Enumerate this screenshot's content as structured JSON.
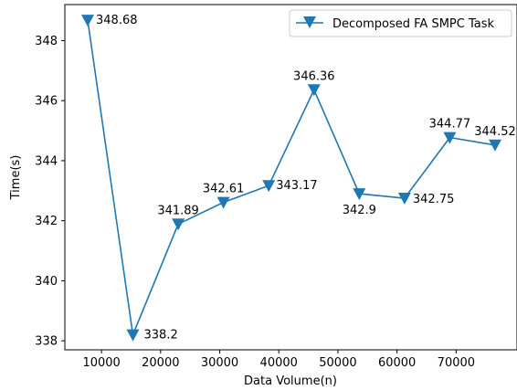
{
  "chart_data": {
    "type": "line",
    "title": "",
    "xlabel": "Data Volume(n)",
    "ylabel": "Time(s)",
    "xlim": [
      3800,
      80300
    ],
    "ylim": [
      337.7,
      349.2
    ],
    "grid": false,
    "legend_position": "top-right",
    "x_ticks": [
      10000,
      20000,
      30000,
      40000,
      50000,
      60000,
      70000
    ],
    "x_tick_labels": [
      "10000",
      "20000",
      "30000",
      "40000",
      "50000",
      "60000",
      "70000"
    ],
    "y_ticks": [
      338,
      340,
      342,
      344,
      346,
      348
    ],
    "y_tick_labels": [
      "338",
      "340",
      "342",
      "344",
      "346",
      "348"
    ],
    "series": [
      {
        "name": "Decomposed FA SMPC Task",
        "color": "#1f77b4",
        "marker": "triangle-down",
        "x": [
          7659,
          15318,
          22977,
          30636,
          38295,
          45954,
          53613,
          61272,
          68931,
          76590
        ],
        "y": [
          348.68,
          338.2,
          341.89,
          342.61,
          343.17,
          346.36,
          342.9,
          342.75,
          344.77,
          344.52
        ],
        "labels": [
          "348.68",
          "338.2",
          "341.89",
          "342.61",
          "343.17",
          "346.36",
          "342.9",
          "342.75",
          "344.77",
          "344.52"
        ]
      }
    ]
  }
}
